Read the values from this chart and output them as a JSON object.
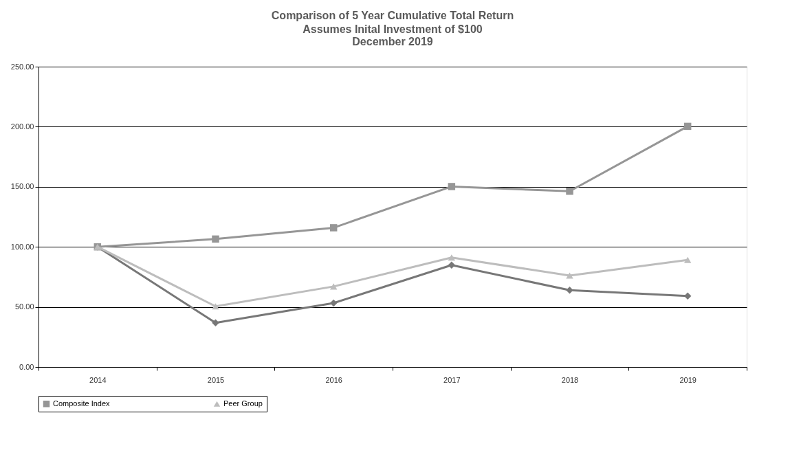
{
  "chart_data": {
    "type": "line",
    "title": "Comparison of 5 Year Cumulative Total Return",
    "subtitle": "Assumes Inital Investment of $100\nDecember 2019",
    "categories": [
      "2014",
      "2015",
      "2016",
      "2017",
      "2018",
      "2019"
    ],
    "series": [
      {
        "color": "#777777",
        "marker": "diamond",
        "values": [
          100,
          36.7,
          53.2,
          84.8,
          63.9,
          59.1
        ]
      },
      {
        "name": "Composite Index",
        "color": "#969696",
        "marker": "square",
        "values": [
          100,
          106.5,
          115.9,
          150.2,
          146.3,
          200.3
        ]
      },
      {
        "name": "Peer Group",
        "color": "#bdbdbd",
        "marker": "triangle",
        "values": [
          100,
          50.5,
          67.0,
          91.1,
          76.1,
          89.1
        ]
      }
    ],
    "ylim": [
      0,
      250
    ],
    "yticks": [
      {
        "value": 0,
        "label": "0.00"
      },
      {
        "value": 50,
        "label": "50.00"
      },
      {
        "value": 100,
        "label": "100.00"
      },
      {
        "value": 150,
        "label": "150.00"
      },
      {
        "value": 200,
        "label": "200.00"
      },
      {
        "value": 250,
        "label": "250.00"
      }
    ],
    "grid": "y",
    "legend": "bottom",
    "line_style": "solid"
  }
}
